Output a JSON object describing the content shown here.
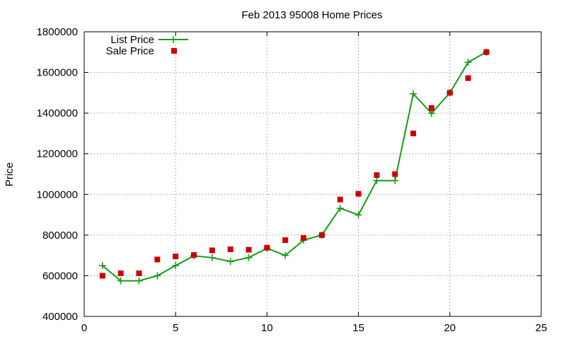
{
  "chart_data": {
    "type": "line",
    "title": "Feb 2013 95008 Home Prices",
    "xlabel": "",
    "ylabel": "Price",
    "xlim": [
      0,
      25
    ],
    "ylim": [
      400000,
      1800000
    ],
    "xticks": [
      0,
      5,
      10,
      15,
      20,
      25
    ],
    "yticks": [
      400000,
      600000,
      800000,
      1000000,
      1200000,
      1400000,
      1600000,
      1800000
    ],
    "grid": true,
    "legend_position": "top-left",
    "series": [
      {
        "name": "List Price",
        "style": "line-with-plus-markers",
        "color": "#1a9a1a",
        "x": [
          1,
          2,
          3,
          4,
          5,
          6,
          7,
          8,
          9,
          10,
          11,
          12,
          13,
          14,
          15,
          16,
          17,
          18,
          19,
          20,
          21,
          22
        ],
        "y": [
          650000,
          575000,
          575000,
          600000,
          650000,
          698000,
          689000,
          670000,
          689000,
          735000,
          700000,
          775000,
          800000,
          932000,
          899000,
          1068000,
          1068000,
          1495000,
          1399000,
          1499000,
          1650000,
          1700000
        ]
      },
      {
        "name": "Sale Price",
        "style": "square-markers",
        "color": "#cc0000",
        "x": [
          1,
          2,
          3,
          4,
          5,
          6,
          7,
          8,
          9,
          10,
          11,
          12,
          13,
          14,
          15,
          16,
          17,
          18,
          19,
          20,
          21,
          22
        ],
        "y": [
          600000,
          612000,
          612000,
          680000,
          695000,
          702000,
          725000,
          730000,
          728000,
          738000,
          775000,
          786000,
          800000,
          975000,
          1003000,
          1095000,
          1100000,
          1300000,
          1425000,
          1500000,
          1572000,
          1700000
        ]
      }
    ]
  }
}
